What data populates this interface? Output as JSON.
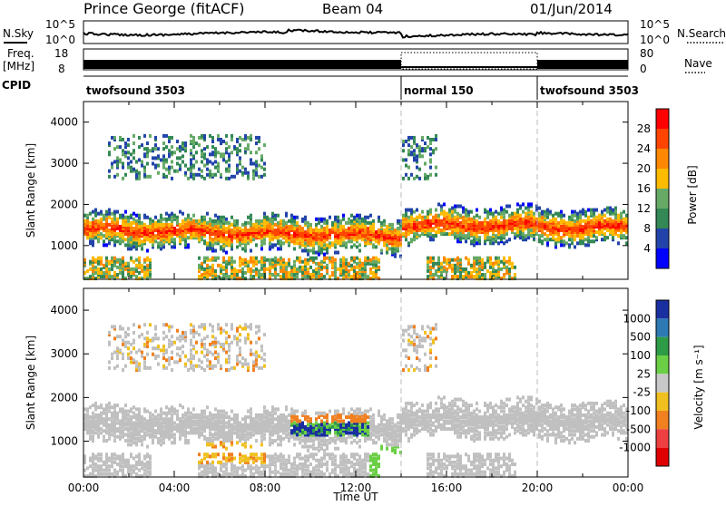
{
  "header": {
    "station": "Prince George (fitACF)",
    "beam": "Beam 04",
    "date": "01/Jun/2014"
  },
  "top_panels": {
    "nsky_label": "N.Sky",
    "nsky_ticks": [
      "10^5",
      "10^0"
    ],
    "nsearch_label": "N.Search",
    "nsearch_ticks": [
      "10^5",
      "10^0"
    ],
    "freq_label": "Freq.",
    "freq_unit": "[MHz]",
    "freq_ticks": [
      "18",
      "8"
    ],
    "nave_label": "Nave",
    "nave_ticks": [
      "80",
      "0"
    ],
    "cpid_label": "CPID",
    "cpid_segments": [
      {
        "name": "twofsound 3503",
        "start_h": 0,
        "end_h": 14
      },
      {
        "name": "normal 150",
        "start_h": 14,
        "end_h": 20
      },
      {
        "name": "twofsound 3503",
        "start_h": 20,
        "end_h": 24
      }
    ]
  },
  "power_panel": {
    "ylabel": "Slant Range [km]",
    "yticks": [
      "4000",
      "3000",
      "2000",
      "1000"
    ],
    "colorbar_label": "Power [dB]",
    "colorbar_ticks": [
      "28",
      "24",
      "20",
      "16",
      "12",
      "8",
      "4"
    ],
    "colors": [
      "#ff0000",
      "#ff4400",
      "#ff8800",
      "#ffbb00",
      "#66aa66",
      "#338855",
      "#2244aa",
      "#0000ff"
    ]
  },
  "velocity_panel": {
    "ylabel": "Slant Range [km]",
    "yticks": [
      "4000",
      "3000",
      "2000",
      "1000"
    ],
    "colorbar_label": "Velocity [m s⁻¹]",
    "colorbar_ticks": [
      "1000",
      "500",
      "100",
      "25",
      "-25",
      "-100",
      "-500",
      "-1000"
    ],
    "colors": [
      "#1a2fa0",
      "#2d7ab5",
      "#2e9b46",
      "#6bcf45",
      "#c8c8c8",
      "#f0c020",
      "#f08020",
      "#ee4040",
      "#e00000"
    ],
    "ground_scatter": "#c0c0c0"
  },
  "xaxis": {
    "label": "Time UT",
    "ticks": [
      "00:00",
      "04:00",
      "08:00",
      "12:00",
      "16:00",
      "20:00",
      "00:00"
    ]
  },
  "chart_data": {
    "type": "heatmap",
    "title": "Prince George (fitACF)  Beam 04  01/Jun/2014",
    "xlabel": "Time UT",
    "ylabel": "Slant Range [km]",
    "xlim": [
      0,
      24
    ],
    "ylim": [
      180,
      4500
    ],
    "mode_changes_h": [
      14,
      20
    ],
    "power_bands_dB": [
      {
        "start_h": 0,
        "end_h": 14,
        "range_km": [
          1100,
          1700
        ],
        "peak_dB": 28
      },
      {
        "start_h": 14,
        "end_h": 20,
        "range_km": [
          1200,
          1800
        ],
        "peak_dB": 20
      },
      {
        "start_h": 20,
        "end_h": 24,
        "range_km": [
          1300,
          1600
        ],
        "peak_dB": 24
      }
    ],
    "velocity_features": [
      {
        "start_h": 9,
        "end_h": 12.5,
        "range_km": [
          1100,
          1600
        ],
        "velocity_ms": 500
      },
      {
        "start_h": 5,
        "end_h": 8,
        "range_km": [
          500,
          1000
        ],
        "velocity_ms": -100
      }
    ]
  }
}
